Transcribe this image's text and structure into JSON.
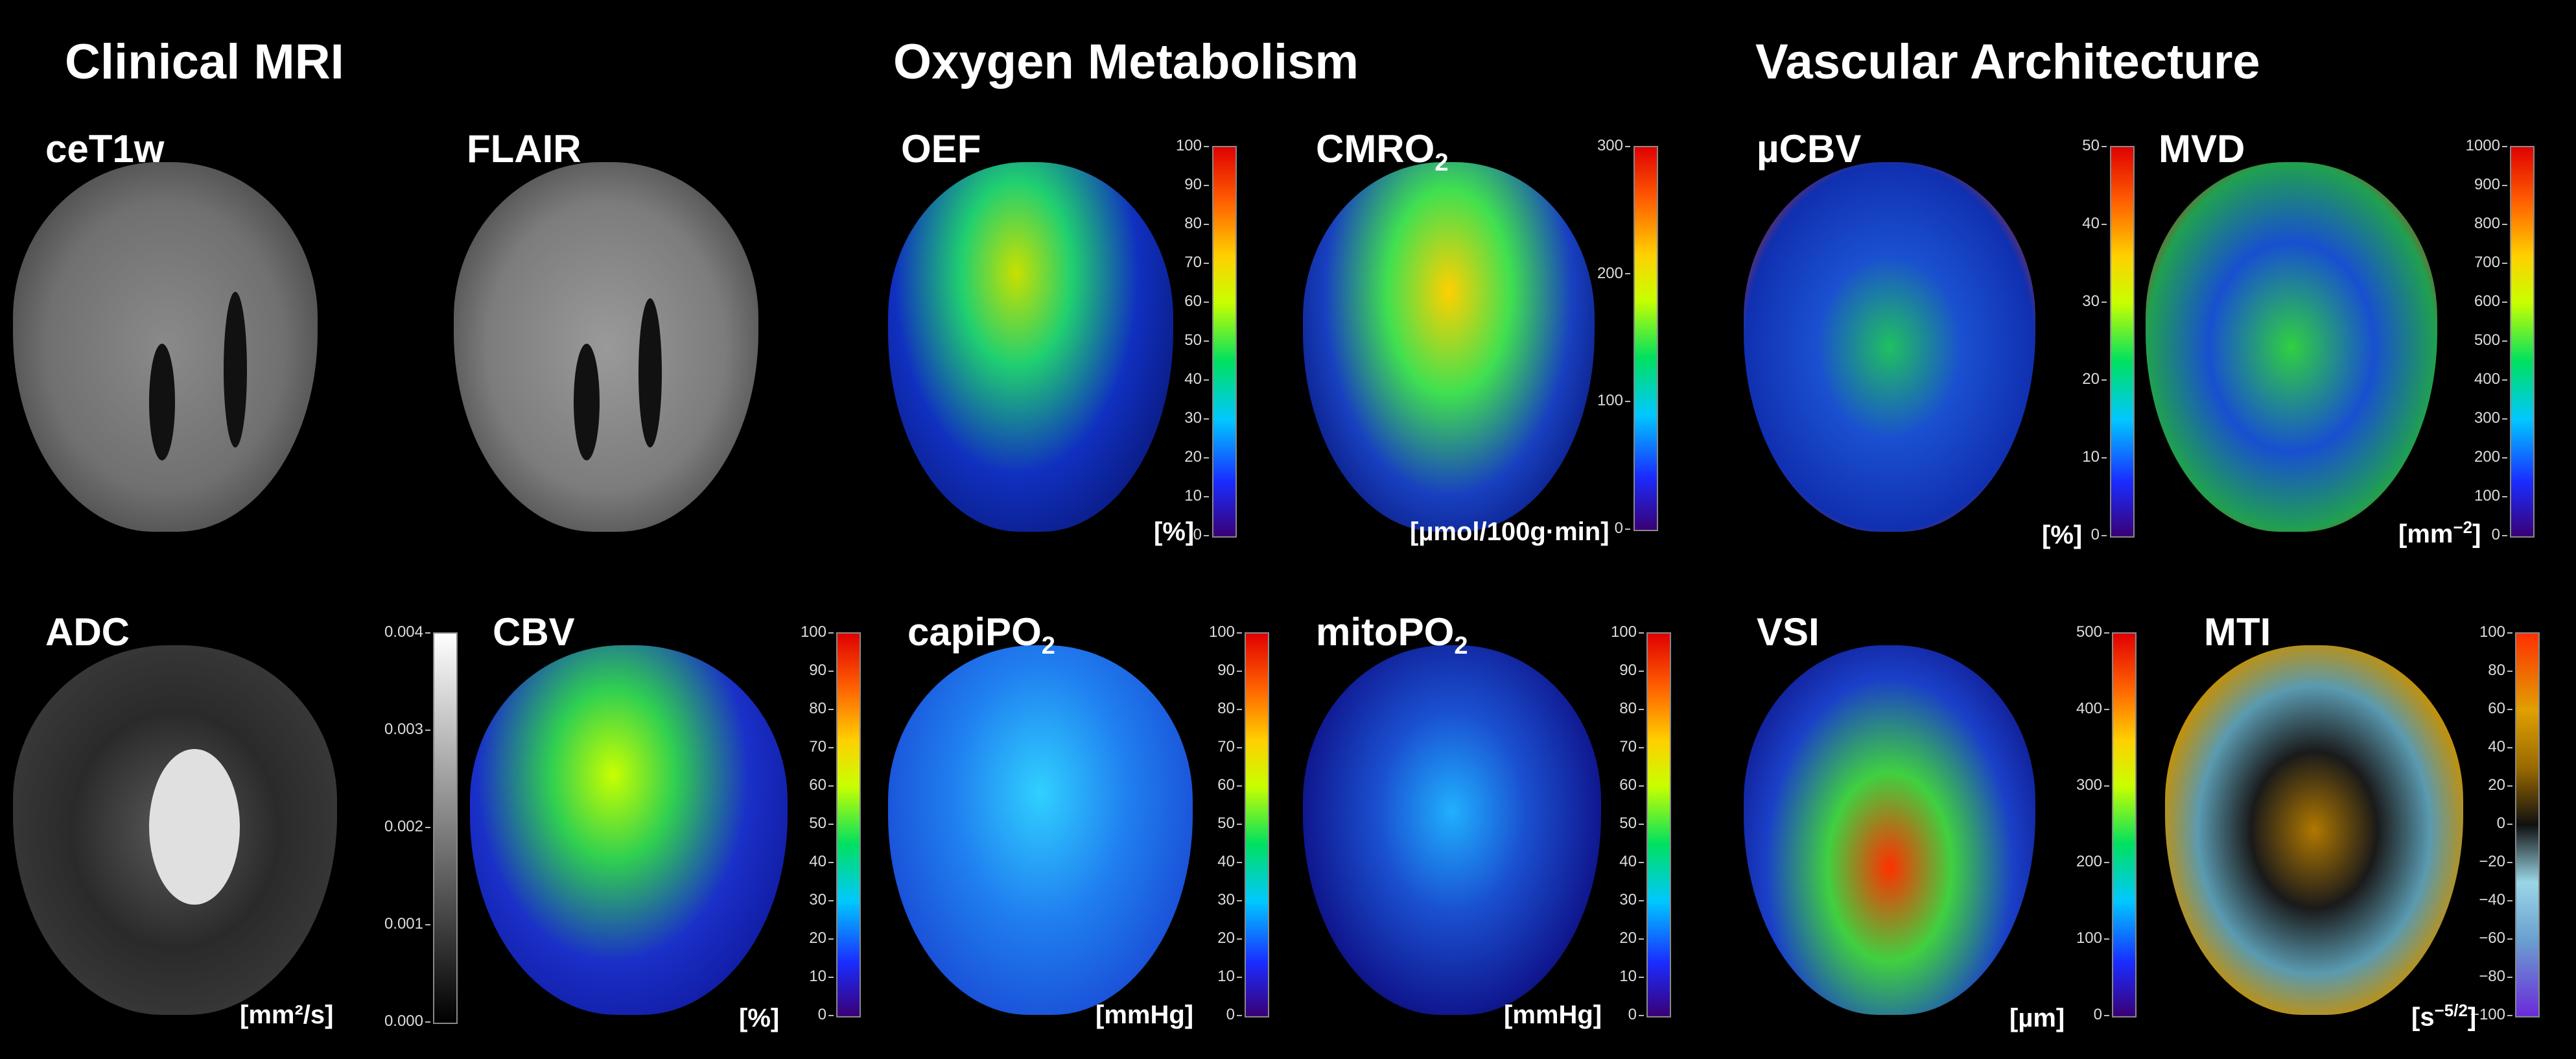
{
  "sections": [
    {
      "title": "Clinical MRI"
    },
    {
      "title": "Oxygen Metabolism"
    },
    {
      "title": "Vascular Architecture"
    }
  ],
  "panels": [
    {
      "label": "ceT1w",
      "unit": "",
      "ticks": [],
      "colormap": "gray-anatomy"
    },
    {
      "label": "FLAIR",
      "unit": "",
      "ticks": [],
      "colormap": "gray-anatomy"
    },
    {
      "label": "OEF",
      "unit": "[%]",
      "ticks": [
        "100",
        "90",
        "80",
        "70",
        "60",
        "50",
        "40",
        "30",
        "20",
        "10",
        "0"
      ],
      "colormap": "rainbow"
    },
    {
      "label": "CMRO",
      "label_sub": "2",
      "unit": "[µmol/100g·min]",
      "ticks": [
        "300",
        "200",
        "100",
        "0"
      ],
      "colormap": "rainbow"
    },
    {
      "label": "µCBV",
      "unit": "[%]",
      "ticks": [
        "50",
        "40",
        "30",
        "20",
        "10",
        "0"
      ],
      "colormap": "rainbow"
    },
    {
      "label": "MVD",
      "unit": "[mm",
      "unit_sup": "−2",
      "unit_end": "]",
      "ticks": [
        "1000",
        "900",
        "800",
        "700",
        "600",
        "500",
        "400",
        "300",
        "200",
        "100",
        "0"
      ],
      "colormap": "rainbow"
    },
    {
      "label": "ADC",
      "unit": "[mm²/s]",
      "ticks": [
        "0.004",
        "0.003",
        "0.002",
        "0.001",
        "0.000"
      ],
      "colormap": "grayscale"
    },
    {
      "label": "CBV",
      "unit": "[%]",
      "ticks": [
        "100",
        "90",
        "80",
        "70",
        "60",
        "50",
        "40",
        "30",
        "20",
        "10",
        "0"
      ],
      "colormap": "rainbow"
    },
    {
      "label": "capiPO",
      "label_sub": "2",
      "unit": "[mmHg]",
      "ticks": [
        "100",
        "90",
        "80",
        "70",
        "60",
        "50",
        "40",
        "30",
        "20",
        "10",
        "0"
      ],
      "colormap": "rainbow"
    },
    {
      "label": "mitoPO",
      "label_sub": "2",
      "unit": "[mmHg]",
      "ticks": [
        "100",
        "90",
        "80",
        "70",
        "60",
        "50",
        "40",
        "30",
        "20",
        "10",
        "0"
      ],
      "colormap": "rainbow"
    },
    {
      "label": "VSI",
      "unit": "[µm]",
      "ticks": [
        "500",
        "400",
        "300",
        "200",
        "100",
        "0"
      ],
      "colormap": "rainbow"
    },
    {
      "label": "MTI",
      "unit": "[s",
      "unit_sup": "−5/2",
      "unit_end": "]",
      "ticks": [
        "100",
        "80",
        "60",
        "40",
        "20",
        "0",
        "−20",
        "−40",
        "−60",
        "−80",
        "−100"
      ],
      "colormap": "diverging"
    }
  ]
}
